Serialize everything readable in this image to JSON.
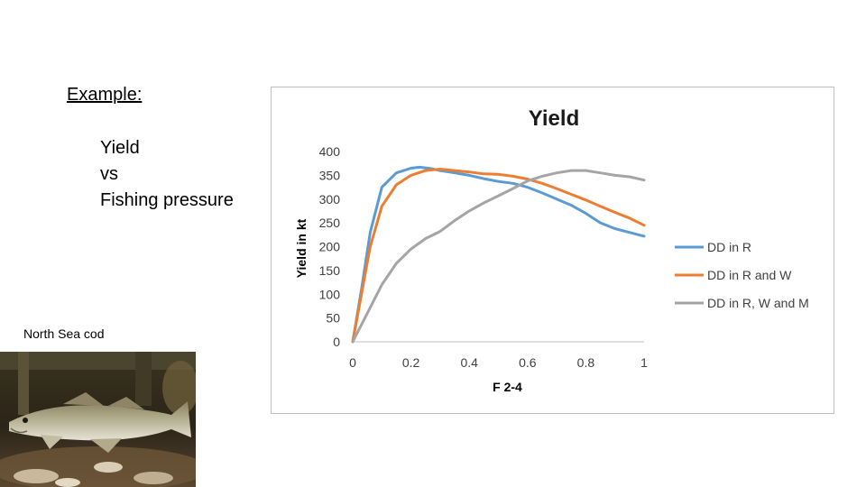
{
  "slide": {
    "heading": "Example:",
    "subtitle_lines": [
      "Yield",
      "vs",
      "Fishing pressure"
    ],
    "photo_caption": "North Sea cod"
  },
  "chart_data": {
    "type": "line",
    "title": "Yield",
    "xlabel": "F 2-4",
    "ylabel": "Yield in kt",
    "xlim": [
      0,
      1
    ],
    "ylim": [
      0,
      400
    ],
    "x_ticks": [
      "0",
      "0.2",
      "0.4",
      "0.6",
      "0.8",
      "1"
    ],
    "y_ticks": [
      "0",
      "50",
      "100",
      "150",
      "200",
      "250",
      "300",
      "350",
      "400"
    ],
    "grid": false,
    "legend_position": "right",
    "series": [
      {
        "name": "DD in R",
        "color": "#5b9bd5",
        "points": [
          [
            0,
            0
          ],
          [
            0.03,
            110
          ],
          [
            0.06,
            230
          ],
          [
            0.1,
            325
          ],
          [
            0.15,
            355
          ],
          [
            0.2,
            365
          ],
          [
            0.23,
            367
          ],
          [
            0.27,
            364
          ],
          [
            0.3,
            360
          ],
          [
            0.35,
            355
          ],
          [
            0.4,
            350
          ],
          [
            0.45,
            343
          ],
          [
            0.5,
            337
          ],
          [
            0.55,
            333
          ],
          [
            0.6,
            325
          ],
          [
            0.65,
            313
          ],
          [
            0.7,
            300
          ],
          [
            0.75,
            287
          ],
          [
            0.8,
            270
          ],
          [
            0.85,
            250
          ],
          [
            0.9,
            238
          ],
          [
            0.95,
            230
          ],
          [
            1,
            222
          ]
        ]
      },
      {
        "name": "DD in R and W",
        "color": "#ed7d31",
        "points": [
          [
            0,
            0
          ],
          [
            0.03,
            100
          ],
          [
            0.06,
            200
          ],
          [
            0.1,
            285
          ],
          [
            0.15,
            330
          ],
          [
            0.2,
            350
          ],
          [
            0.25,
            360
          ],
          [
            0.3,
            363
          ],
          [
            0.35,
            360
          ],
          [
            0.4,
            357
          ],
          [
            0.45,
            353
          ],
          [
            0.5,
            352
          ],
          [
            0.55,
            348
          ],
          [
            0.6,
            342
          ],
          [
            0.65,
            333
          ],
          [
            0.7,
            322
          ],
          [
            0.75,
            310
          ],
          [
            0.8,
            298
          ],
          [
            0.85,
            285
          ],
          [
            0.9,
            272
          ],
          [
            0.95,
            260
          ],
          [
            1,
            245
          ]
        ]
      },
      {
        "name": "DD in R, W and M",
        "color": "#a5a5a5",
        "points": [
          [
            0,
            0
          ],
          [
            0.05,
            60
          ],
          [
            0.1,
            120
          ],
          [
            0.15,
            165
          ],
          [
            0.2,
            195
          ],
          [
            0.25,
            217
          ],
          [
            0.3,
            232
          ],
          [
            0.35,
            255
          ],
          [
            0.4,
            275
          ],
          [
            0.45,
            292
          ],
          [
            0.5,
            307
          ],
          [
            0.55,
            322
          ],
          [
            0.6,
            338
          ],
          [
            0.65,
            348
          ],
          [
            0.7,
            355
          ],
          [
            0.75,
            360
          ],
          [
            0.8,
            360
          ],
          [
            0.85,
            355
          ],
          [
            0.9,
            350
          ],
          [
            0.95,
            347
          ],
          [
            1,
            340
          ]
        ]
      }
    ]
  }
}
